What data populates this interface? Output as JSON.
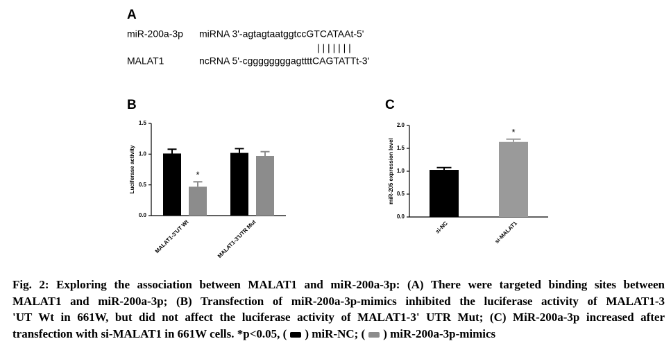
{
  "panel_a": {
    "label": "A",
    "rows": [
      {
        "name": "miR-200a-3p",
        "sequence": "miRNA 3'-agtagtaatggtccGTCATAAt-5'"
      },
      {
        "name": "MALAT1",
        "sequence": "ncRNA 5'-cggggggggagttttCAGTATTt-3'"
      }
    ],
    "pairing": "| | | | | | |"
  },
  "chart_data": [
    {
      "type": "bar",
      "panel": "B",
      "ylabel": "Luciferase activity",
      "categories": [
        "MALAT1-3'UT Wt",
        "MALAT1-3'UTR Mut"
      ],
      "series": [
        {
          "name": "miR-NC",
          "color": "#000000",
          "values": [
            1.01,
            1.02
          ],
          "errors": [
            0.07,
            0.07
          ],
          "significance": [
            null,
            null
          ]
        },
        {
          "name": "miR-200a-3p-mimics",
          "color": "#8c8c8c",
          "values": [
            0.47,
            0.97
          ],
          "errors": [
            0.08,
            0.07
          ],
          "significance": [
            "*",
            null
          ]
        }
      ],
      "ylim": [
        0,
        1.5
      ],
      "yticks": [
        {
          "value": 0,
          "label": "0.0"
        },
        {
          "value": 0.5,
          "label": "0.5"
        },
        {
          "value": 1,
          "label": "1.0"
        },
        {
          "value": 1.5,
          "label": "1.5"
        }
      ]
    },
    {
      "type": "bar",
      "panel": "C",
      "ylabel": "miR-205 expression level",
      "categories": [
        "si-NC",
        "si-MALAT1"
      ],
      "series": [
        {
          "colors": [
            "#000000",
            "#9a9a9a"
          ],
          "values": [
            1.03,
            1.64
          ],
          "errors": [
            0.05,
            0.06
          ],
          "significance": [
            null,
            "*"
          ]
        }
      ],
      "ylim": [
        0,
        2
      ],
      "yticks": [
        {
          "value": 0,
          "label": "0.0"
        },
        {
          "value": 0.5,
          "label": "0.5"
        },
        {
          "value": 1,
          "label": "1.0"
        },
        {
          "value": 1.5,
          "label": "1.5"
        },
        {
          "value": 2,
          "label": "2.0"
        }
      ]
    }
  ],
  "caption": {
    "lines": [
      "Fig. 2: Exploring the association between MALAT1 and miR-200a-3p: (A) There were targeted binding sites between",
      "MALAT1 and miR-200a-3p; (B) Transfection of miR-200a-3p-mimics inhibited the luciferase activity of MALAT1-3",
      "'UT Wt in 661W, but did not affect the luciferase activity of MALAT1-3' UTR Mut; (C) MiR-200a-3p increased after"
    ],
    "last_start": "transfection with si-MALAT1 in 661W cells. *p<0.05, (",
    "key_close": ")",
    "key_join": "; ("
  }
}
